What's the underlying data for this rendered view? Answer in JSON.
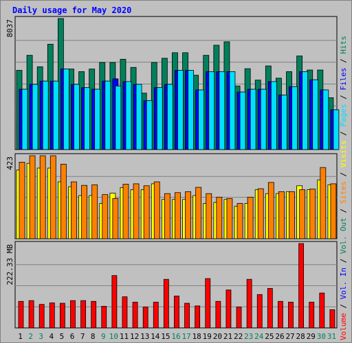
{
  "chart_data": {
    "type": "bar",
    "title": "Daily usage for May 2020",
    "x": [
      "1",
      "2",
      "3",
      "4",
      "5",
      "6",
      "7",
      "8",
      "9",
      "10",
      "11",
      "12",
      "13",
      "14",
      "15",
      "16",
      "17",
      "18",
      "19",
      "20",
      "21",
      "22",
      "23",
      "24",
      "25",
      "26",
      "27",
      "28",
      "29",
      "30",
      "31"
    ],
    "weekend_days": [
      "2",
      "3",
      "9",
      "10",
      "16",
      "17",
      "23",
      "24",
      "30",
      "31"
    ],
    "panels": [
      {
        "name": "hits-files-pages",
        "ymax_label": "8037",
        "ymax": 8037,
        "series": [
          {
            "name": "Hits",
            "color": "#00805c",
            "values": [
              4860,
              5780,
              5080,
              6460,
              8037,
              4940,
              4780,
              4940,
              5340,
              5340,
              5540,
              5040,
              3460,
              5340,
              5600,
              5940,
              5940,
              4560,
              5780,
              6400,
              6610,
              3900,
              4960,
              4260,
              5130,
              4380,
              4780,
              5740,
              4880,
              4880,
              3180
            ]
          },
          {
            "name": "Files",
            "color": "#0000ff",
            "values": [
              3700,
              4000,
              4200,
              4200,
              4940,
              4000,
              3800,
              3700,
              4200,
              4340,
              4170,
              4000,
              3000,
              3800,
              4000,
              4860,
              4860,
              3660,
              4780,
              4780,
              4780,
              3530,
              3700,
              3700,
              4170,
              3340,
              3860,
              4780,
              4280,
              3660,
              2440
            ]
          },
          {
            "name": "Pages",
            "color": "#00e0ff",
            "values": [
              3700,
              4000,
              4200,
              4200,
              4940,
              4000,
              3800,
              3700,
              4200,
              3900,
              4170,
              4000,
              3000,
              3800,
              4000,
              4860,
              4860,
              3660,
              4780,
              4780,
              4780,
              3530,
              3700,
              3700,
              4170,
              3340,
              3860,
              4780,
              4280,
              3660,
              2440
            ]
          }
        ]
      },
      {
        "name": "visits-sites",
        "ymax_label": "423",
        "ymax": 423,
        "series": [
          {
            "name": "Visits",
            "color": "#ffff00",
            "values": [
              350,
              384,
              360,
              360,
              290,
              265,
              220,
              220,
              180,
              232,
              260,
              250,
              250,
              280,
              200,
              200,
              200,
              220,
              180,
              185,
              200,
              165,
              180,
              250,
              230,
              230,
              240,
              270,
              250,
              300,
              275
            ]
          },
          {
            "name": "Sites",
            "color": "#ff8000",
            "values": [
              390,
              423,
              423,
              423,
              380,
              290,
              272,
              275,
              225,
              205,
              278,
              280,
              270,
              290,
              230,
              235,
              240,
              262,
              230,
              212,
              205,
              180,
              212,
              255,
              287,
              240,
              240,
              250,
              253,
              363,
              280
            ]
          }
        ]
      },
      {
        "name": "volume",
        "ymax_label": "222.33 MB",
        "ymax": 222.33,
        "series": [
          {
            "name": "Volume",
            "color": "#ff0000",
            "values": [
              70,
              72,
              62,
              66,
              65,
              72,
              72,
              70,
              57,
              138,
              82,
              68,
              55,
              68,
              128,
              84,
              65,
              58,
              130,
              70,
              100,
              55,
              128,
              88,
              104,
              70,
              68,
              222.33,
              68,
              92,
              48
            ]
          }
        ]
      }
    ],
    "legend": [
      {
        "label": "Volume",
        "color": "#ff0000"
      },
      {
        "label": "Vol. In",
        "color": "#0000ff"
      },
      {
        "label": "Vol. Out",
        "color": "#00805c"
      },
      {
        "label": "Sites",
        "color": "#ff8000"
      },
      {
        "label": "Visits",
        "color": "#ffff00"
      },
      {
        "label": "Pages",
        "color": "#00e0ff"
      },
      {
        "label": "Files",
        "color": "#0000ff"
      },
      {
        "label": "Hits",
        "color": "#00805c"
      }
    ],
    "legend_separator": "/",
    "legend_placement": "right",
    "grid": true
  },
  "colors": {
    "title": "#0000ff",
    "plot_bg": "#c0c0c0",
    "gridline": "#808080",
    "weekend_label": "#00805c",
    "weekday_label": "#000000",
    "axis_text": "#000000"
  }
}
